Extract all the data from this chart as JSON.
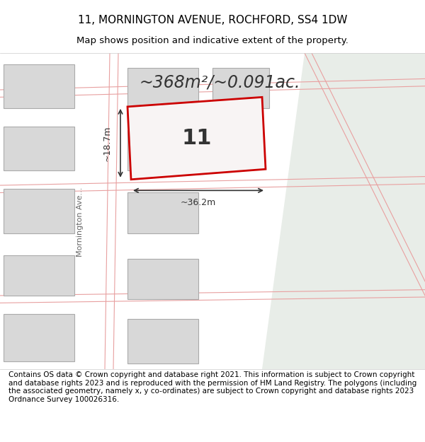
{
  "title": "11, MORNINGTON AVENUE, ROCHFORD, SS4 1DW",
  "subtitle": "Map shows position and indicative extent of the property.",
  "area_label": "~368m²/~0.091ac.",
  "width_label": "~36.2m",
  "height_label": "~18.7m",
  "number_label": "11",
  "street_label": "Mornington Ave...",
  "footer_text": "Contains OS data © Crown copyright and database right 2021. This information is subject to Crown copyright and database rights 2023 and is reproduced with the permission of HM Land Registry. The polygons (including the associated geometry, namely x, y co-ordinates) are subject to Crown copyright and database rights 2023 Ordnance Survey 100026316.",
  "map_bg": "#f0f0ee",
  "map_bg_right": "#e8ede8",
  "plot_fill": "#f5f5f5",
  "plot_edge": "#cc0000",
  "building_fill": "#d8d8d8",
  "building_edge": "#aaaaaa",
  "road_line": "#e8a0a0",
  "dim_line_color": "#333333",
  "title_fontsize": 11,
  "subtitle_fontsize": 9.5,
  "area_fontsize": 17,
  "number_fontsize": 22,
  "footer_fontsize": 7.5,
  "fig_width": 6.0,
  "fig_height": 6.25
}
